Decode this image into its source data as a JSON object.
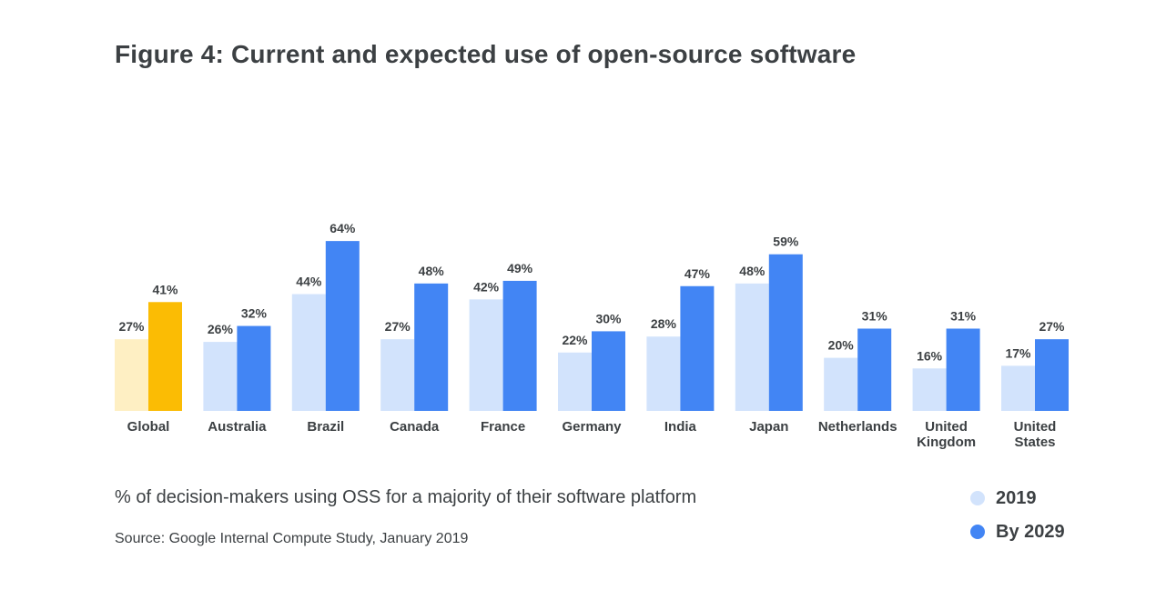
{
  "title": "Figure 4: Current and expected use of open-source software",
  "subtitle": "% of decision-makers using OSS for a majority of their software platform",
  "source": "Source: Google Internal Compute Study, January 2019",
  "colors": {
    "series_2019": "#d2e3fc",
    "series_2029": "#4285f4",
    "global_2019": "#feefc3",
    "global_2029": "#fbbc04",
    "text": "#3c4043"
  },
  "chart_data": {
    "type": "bar",
    "title": "Figure 4: Current and expected use of open-source software",
    "xlabel": "",
    "ylabel": "",
    "ylim": [
      0,
      70
    ],
    "grid": false,
    "legend_position": "bottom-right",
    "value_suffix": "%",
    "categories": [
      [
        "Global"
      ],
      [
        "Australia"
      ],
      [
        "Brazil"
      ],
      [
        "Canada"
      ],
      [
        "France"
      ],
      [
        "Germany"
      ],
      [
        "India"
      ],
      [
        "Japan"
      ],
      [
        "Netherlands"
      ],
      [
        "United",
        "Kingdom"
      ],
      [
        "United",
        "States"
      ]
    ],
    "series": [
      {
        "name": "2019",
        "values": [
          27,
          26,
          44,
          27,
          42,
          22,
          28,
          48,
          20,
          16,
          17
        ]
      },
      {
        "name": "By 2029",
        "values": [
          41,
          32,
          64,
          48,
          49,
          30,
          47,
          59,
          31,
          31,
          27
        ]
      }
    ]
  }
}
